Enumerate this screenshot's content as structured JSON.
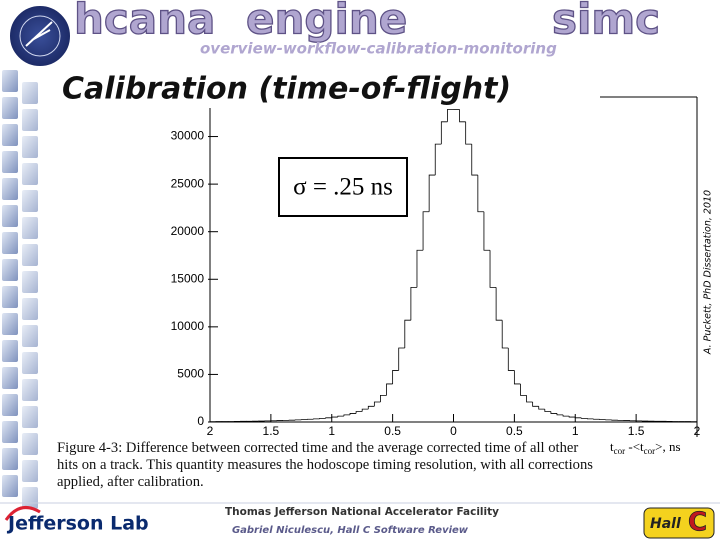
{
  "header": {
    "words": [
      "hcana",
      "engine",
      "simc"
    ],
    "subtitle": "overview-workflow-calibration-monitoring",
    "title": "Calibration (time-of-flight)"
  },
  "chart_data": {
    "type": "histogram",
    "bins": [
      -2,
      -1.95,
      -1.9,
      -1.85,
      -1.8,
      -1.75,
      -1.7,
      -1.65,
      -1.6,
      -1.55,
      -1.5,
      -1.45,
      -1.4,
      -1.35,
      -1.3,
      -1.25,
      -1.2,
      -1.15,
      -1.1,
      -1.05,
      -1,
      -0.95,
      -0.9,
      -0.85,
      -0.8,
      -0.75,
      -0.7,
      -0.65,
      -0.6,
      -0.55,
      -0.5,
      -0.45,
      -0.4,
      -0.35,
      -0.3,
      -0.25,
      -0.2,
      -0.15,
      -0.1,
      -0.05,
      0,
      0.05,
      0.1,
      0.15,
      0.2,
      0.25,
      0.3,
      0.35,
      0.4,
      0.45,
      0.5,
      0.55,
      0.6,
      0.65,
      0.7,
      0.75,
      0.8,
      0.85,
      0.9,
      0.95,
      1,
      1.05,
      1.1,
      1.15,
      1.2,
      1.25,
      1.3,
      1.35,
      1.4,
      1.45,
      1.5,
      1.55,
      1.6,
      1.65,
      1.7,
      1.75,
      1.8,
      1.85,
      1.9,
      1.95,
      2
    ],
    "values": [
      40,
      45,
      50,
      55,
      60,
      70,
      80,
      90,
      100,
      115,
      130,
      150,
      170,
      190,
      220,
      250,
      290,
      330,
      380,
      440,
      520,
      620,
      750,
      900,
      1100,
      1350,
      1650,
      2100,
      2800,
      4000,
      5420,
      7780,
      10700,
      14150,
      18050,
      22100,
      25950,
      29200,
      31550,
      32840,
      32840,
      31550,
      29200,
      25950,
      22100,
      18050,
      14150,
      10700,
      7780,
      5420,
      4000,
      2800,
      2100,
      1650,
      1350,
      1100,
      900,
      750,
      620,
      520,
      440,
      380,
      330,
      290,
      250,
      220,
      190,
      170,
      150,
      130,
      115,
      100,
      90,
      80,
      70,
      60,
      55,
      50,
      45,
      40
    ],
    "color": "#000000",
    "xlim": [
      -2,
      2
    ],
    "xticks": [
      {
        "value": -2,
        "label": "2"
      },
      {
        "value": -1.5,
        "label": "1.5"
      },
      {
        "value": -1,
        "label": "1"
      },
      {
        "value": -0.5,
        "label": "0.5"
      },
      0,
      0.5,
      1,
      1.5,
      2
    ],
    "ylim": [
      0,
      33000
    ],
    "yticks": [
      0,
      5000,
      10000,
      15000,
      20000,
      25000,
      30000
    ],
    "x_label": [
      "t",
      "cor",
      " -<t",
      "cor",
      ">, ns"
    ],
    "annotation": "σ = .25 ns",
    "credit": "A. Puckett, PhD Dissertation, 2010"
  },
  "caption": "Figure 4-3: Difference between corrected time and the average corrected time of all other hits on a track. This quantity measures the hodoscope timing resolution, with all corrections applied, after calibration.",
  "footer": {
    "lab": "Jefferson Lab",
    "facility": "Thomas Jefferson National Accelerator Facility",
    "author": "Gabriel Niculescu, Hall C Software Review",
    "logo": [
      "Hall",
      "C"
    ]
  }
}
